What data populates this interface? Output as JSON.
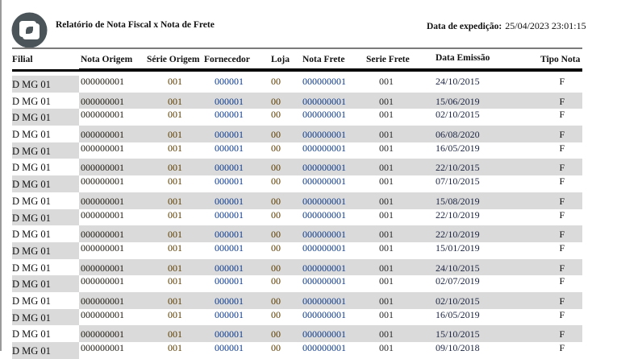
{
  "header": {
    "title": "Relatório de Nota Fiscal x Nota de Frete",
    "expedition_label": "Data de expedição:",
    "expedition_value": "25/04/2023 23:01:15"
  },
  "columns": [
    "Filial",
    "Nota Origem",
    "Série Origem",
    "Fornecedor",
    "Loja",
    "Nota Frete",
    "Serie Frete",
    "Data Emissão",
    "Tipo Nota"
  ],
  "rows": [
    {
      "filial": "D MG 01",
      "nota_origem": "000000001",
      "serie_origem": "001",
      "fornecedor": "000001",
      "loja": "00",
      "nota_frete": "000000001",
      "serie_frete": "001",
      "data_emissao": "24/10/2015",
      "tipo_nota": "F"
    },
    {
      "filial": "D MG 01",
      "nota_origem": "000000001",
      "serie_origem": "001",
      "fornecedor": "000001",
      "loja": "00",
      "nota_frete": "000000001",
      "serie_frete": "001",
      "data_emissao": "15/06/2019",
      "tipo_nota": "F"
    },
    {
      "filial": "D MG 01",
      "nota_origem": "000000001",
      "serie_origem": "001",
      "fornecedor": "000001",
      "loja": "00",
      "nota_frete": "000000001",
      "serie_frete": "001",
      "data_emissao": "02/10/2015",
      "tipo_nota": "F"
    },
    {
      "filial": "D MG 01",
      "nota_origem": "000000001",
      "serie_origem": "001",
      "fornecedor": "000001",
      "loja": "00",
      "nota_frete": "000000001",
      "serie_frete": "001",
      "data_emissao": "06/08/2020",
      "tipo_nota": "F"
    },
    {
      "filial": "D MG 01",
      "nota_origem": "000000001",
      "serie_origem": "001",
      "fornecedor": "000001",
      "loja": "00",
      "nota_frete": "000000001",
      "serie_frete": "001",
      "data_emissao": "16/05/2019",
      "tipo_nota": "F"
    },
    {
      "filial": "D MG 01",
      "nota_origem": "000000001",
      "serie_origem": "001",
      "fornecedor": "000001",
      "loja": "00",
      "nota_frete": "000000001",
      "serie_frete": "001",
      "data_emissao": "22/10/2015",
      "tipo_nota": "F"
    },
    {
      "filial": "D MG 01",
      "nota_origem": "000000001",
      "serie_origem": "001",
      "fornecedor": "000001",
      "loja": "00",
      "nota_frete": "000000001",
      "serie_frete": "001",
      "data_emissao": "07/10/2015",
      "tipo_nota": "F"
    },
    {
      "filial": "D MG 01",
      "nota_origem": "000000001",
      "serie_origem": "001",
      "fornecedor": "000001",
      "loja": "00",
      "nota_frete": "000000001",
      "serie_frete": "001",
      "data_emissao": "15/08/2019",
      "tipo_nota": "F"
    },
    {
      "filial": "D MG 01",
      "nota_origem": "000000001",
      "serie_origem": "001",
      "fornecedor": "000001",
      "loja": "00",
      "nota_frete": "000000001",
      "serie_frete": "001",
      "data_emissao": "22/10/2019",
      "tipo_nota": "F"
    },
    {
      "filial": "D MG 01",
      "nota_origem": "000000001",
      "serie_origem": "001",
      "fornecedor": "000001",
      "loja": "00",
      "nota_frete": "000000001",
      "serie_frete": "001",
      "data_emissao": "22/10/2019",
      "tipo_nota": "F"
    },
    {
      "filial": "D MG 01",
      "nota_origem": "000000001",
      "serie_origem": "001",
      "fornecedor": "000001",
      "loja": "00",
      "nota_frete": "000000001",
      "serie_frete": "001",
      "data_emissao": "15/01/2019",
      "tipo_nota": "F"
    },
    {
      "filial": "D MG 01",
      "nota_origem": "000000001",
      "serie_origem": "001",
      "fornecedor": "000001",
      "loja": "00",
      "nota_frete": "000000001",
      "serie_frete": "001",
      "data_emissao": "24/10/2015",
      "tipo_nota": "F"
    },
    {
      "filial": "D MG 01",
      "nota_origem": "000000001",
      "serie_origem": "001",
      "fornecedor": "000001",
      "loja": "00",
      "nota_frete": "000000001",
      "serie_frete": "001",
      "data_emissao": "02/07/2019",
      "tipo_nota": "F"
    },
    {
      "filial": "D MG 01",
      "nota_origem": "000000001",
      "serie_origem": "001",
      "fornecedor": "000001",
      "loja": "00",
      "nota_frete": "000000001",
      "serie_frete": "001",
      "data_emissao": "02/10/2015",
      "tipo_nota": "F"
    },
    {
      "filial": "D MG 01",
      "nota_origem": "000000001",
      "serie_origem": "001",
      "fornecedor": "000001",
      "loja": "00",
      "nota_frete": "000000001",
      "serie_frete": "001",
      "data_emissao": "16/05/2019",
      "tipo_nota": "F"
    },
    {
      "filial": "D MG 01",
      "nota_origem": "000000001",
      "serie_origem": "001",
      "fornecedor": "000001",
      "loja": "00",
      "nota_frete": "000000001",
      "serie_frete": "001",
      "data_emissao": "15/10/2015",
      "tipo_nota": "F"
    },
    {
      "filial": "D MG 01",
      "nota_origem": "000000001",
      "serie_origem": "001",
      "fornecedor": "000001",
      "loja": "00",
      "nota_frete": "000000001",
      "serie_frete": "001",
      "data_emissao": "09/10/2018",
      "tipo_nota": "F"
    }
  ],
  "colors": {
    "row_stripe": "#dadada",
    "logo": "#4a5459",
    "link_blue": "#0d3b8c"
  }
}
